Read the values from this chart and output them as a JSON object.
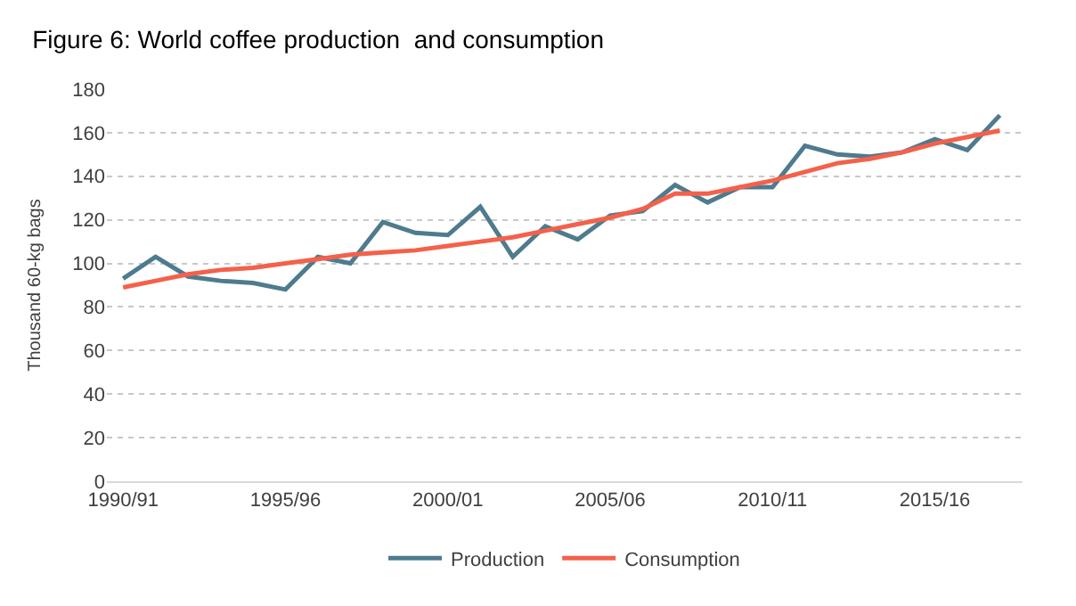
{
  "chart_data": {
    "type": "line",
    "title": "Figure 6: World coffee production  and consumption",
    "ylabel": "Thousand 60-kg bags",
    "categories": [
      "1990/91",
      null,
      null,
      null,
      null,
      "1995/96",
      null,
      null,
      null,
      null,
      "2000/01",
      null,
      null,
      null,
      null,
      "2005/06",
      null,
      null,
      null,
      null,
      "2010/11",
      null,
      null,
      null,
      null,
      "2015/16",
      null,
      null
    ],
    "series": [
      {
        "name": "Production",
        "color": "#4e7b8e",
        "values": [
          93,
          103,
          94,
          92,
          91,
          88,
          103,
          100,
          119,
          114,
          113,
          126,
          103,
          117,
          111,
          122,
          124,
          136,
          128,
          135,
          135,
          154,
          150,
          149,
          151,
          157,
          152,
          168
        ]
      },
      {
        "name": "Consumption",
        "color": "#f4614b",
        "values": [
          89,
          92,
          95,
          97,
          98,
          100,
          102,
          104,
          105,
          106,
          108,
          110,
          112,
          115,
          118,
          121,
          125,
          132,
          132,
          135,
          138,
          142,
          146,
          148,
          151,
          155,
          158,
          161
        ]
      }
    ],
    "ylim": [
      0,
      180
    ],
    "yticks": [
      0,
      20,
      40,
      60,
      80,
      100,
      120,
      140,
      160,
      180
    ],
    "grid": "y",
    "legend": "bottom",
    "marker": "none",
    "line_style": "solid"
  }
}
